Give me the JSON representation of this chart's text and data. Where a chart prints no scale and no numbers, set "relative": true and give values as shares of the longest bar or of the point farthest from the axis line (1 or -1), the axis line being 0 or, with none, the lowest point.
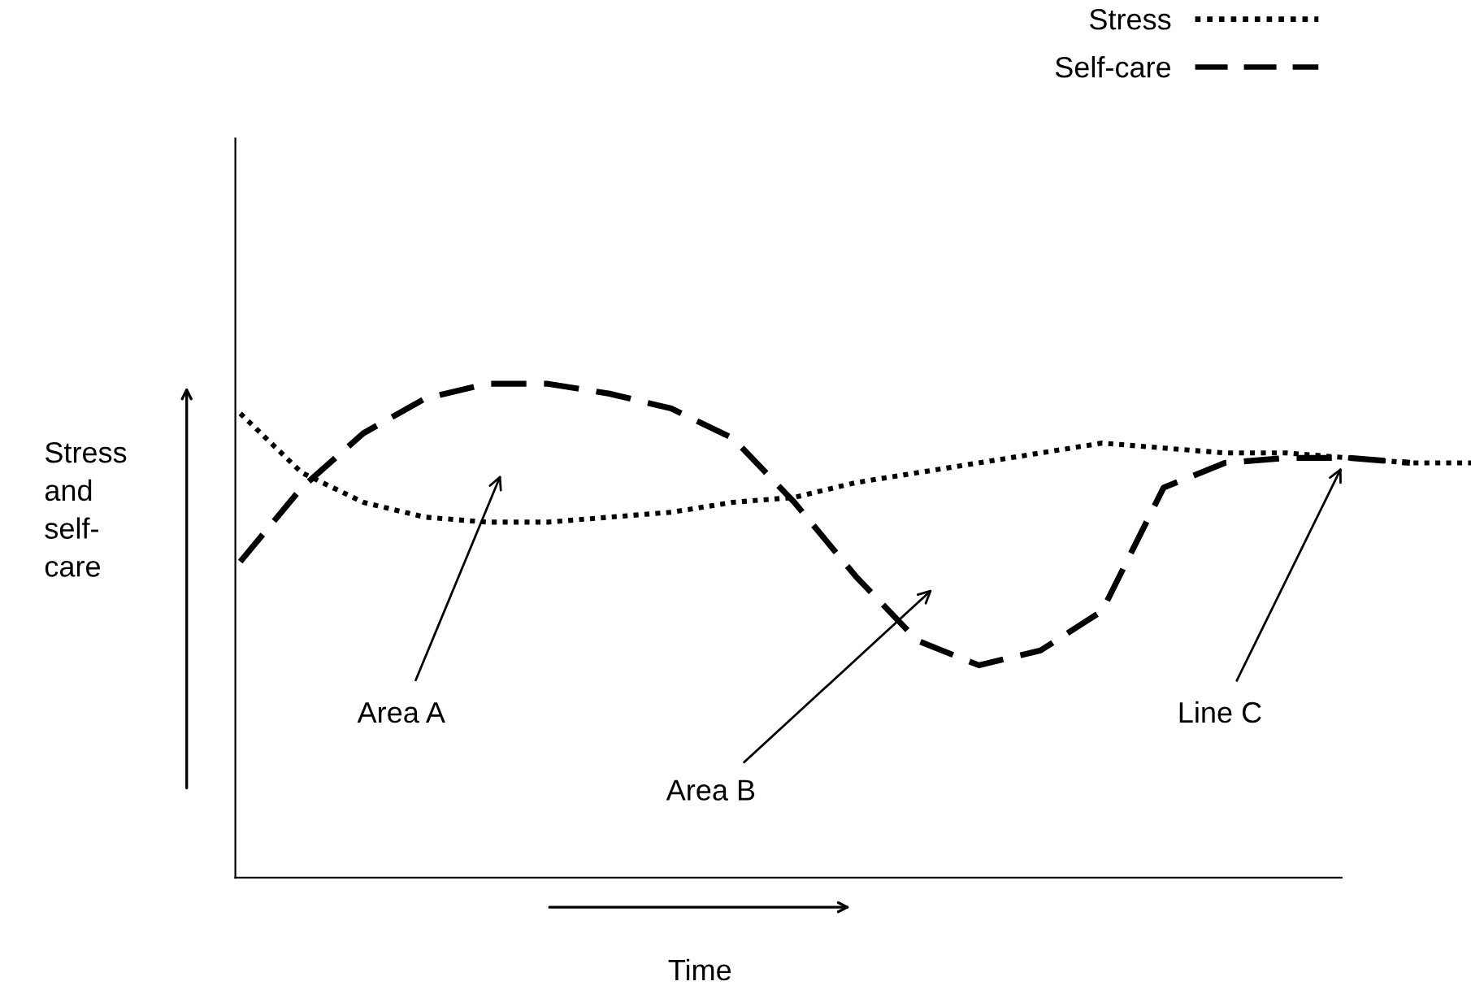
{
  "chart_data": {
    "type": "line",
    "relative": true,
    "xlabel": "Time",
    "ylabel": "Stress and self-care",
    "categories": [
      null,
      null,
      null,
      null,
      null,
      null,
      null,
      null,
      null,
      null,
      null,
      null,
      null,
      null,
      null,
      null,
      null,
      null,
      null,
      null,
      null
    ],
    "series": [
      {
        "name": "Stress",
        "color": "#000000",
        "line_style": "dotted",
        "values": [
          0.94,
          0.82,
          0.76,
          0.73,
          0.72,
          0.72,
          0.73,
          0.74,
          0.76,
          0.77,
          0.8,
          0.82,
          0.84,
          0.86,
          0.88,
          0.87,
          0.86,
          0.86,
          0.85,
          0.84,
          0.84
        ]
      },
      {
        "name": "Self-care",
        "color": "#000000",
        "line_style": "dashed",
        "values": [
          0.64,
          0.79,
          0.9,
          0.97,
          1.0,
          1.0,
          0.98,
          0.95,
          0.89,
          0.76,
          0.61,
          0.48,
          0.43,
          0.46,
          0.54,
          0.79,
          0.84,
          0.85,
          0.85,
          0.84,
          null
        ]
      }
    ],
    "annotations": [
      "Area A",
      "Area B",
      "Line C"
    ],
    "legend": "top right",
    "marker": "none"
  }
}
